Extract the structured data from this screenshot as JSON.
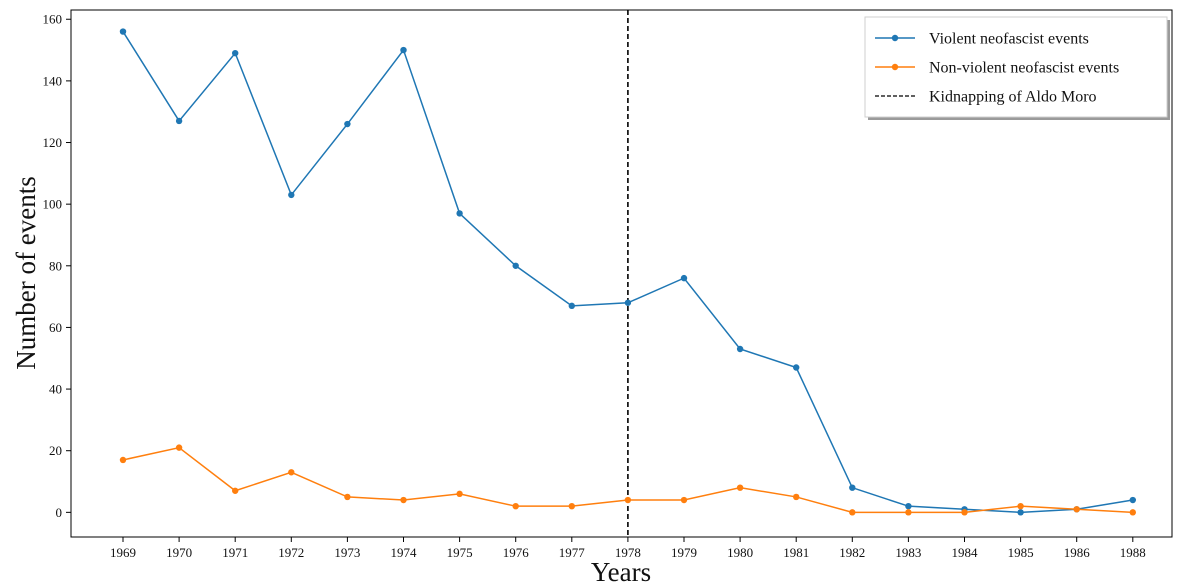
{
  "chart_data": {
    "type": "line",
    "title": "",
    "xlabel": "Years",
    "ylabel": "Number of events",
    "x": [
      1969,
      1970,
      1971,
      1972,
      1973,
      1974,
      1975,
      1976,
      1977,
      1978,
      1979,
      1980,
      1981,
      1982,
      1983,
      1984,
      1985,
      1986,
      1988
    ],
    "x_tick_labels": [
      "1969",
      "1970",
      "1971",
      "1972",
      "1973",
      "1974",
      "1975",
      "1976",
      "1977",
      "1978",
      "1979",
      "1980",
      "1981",
      "1982",
      "1983",
      "1984",
      "1985",
      "1986",
      "1988"
    ],
    "y_ticks": [
      0,
      20,
      40,
      60,
      80,
      100,
      120,
      140,
      160
    ],
    "ylim": [
      -8,
      163
    ],
    "series": [
      {
        "name": "Violent neofascist events",
        "color": "#1f77b4",
        "values": [
          156,
          127,
          149,
          103,
          126,
          150,
          97,
          80,
          67,
          68,
          76,
          53,
          47,
          8,
          2,
          1,
          0,
          1,
          4
        ]
      },
      {
        "name": "Non-violent neofascist events",
        "color": "#ff7f0e",
        "values": [
          17,
          21,
          7,
          13,
          5,
          4,
          6,
          2,
          2,
          4,
          4,
          8,
          5,
          0,
          0,
          0,
          2,
          1,
          0
        ]
      }
    ],
    "annotations": [
      {
        "type": "vertical-line",
        "x": 1978,
        "label": "Kidnapping of Aldo Moro",
        "color": "#000000",
        "style": "dashed"
      }
    ],
    "legend_position": "top-right",
    "grid": false
  }
}
